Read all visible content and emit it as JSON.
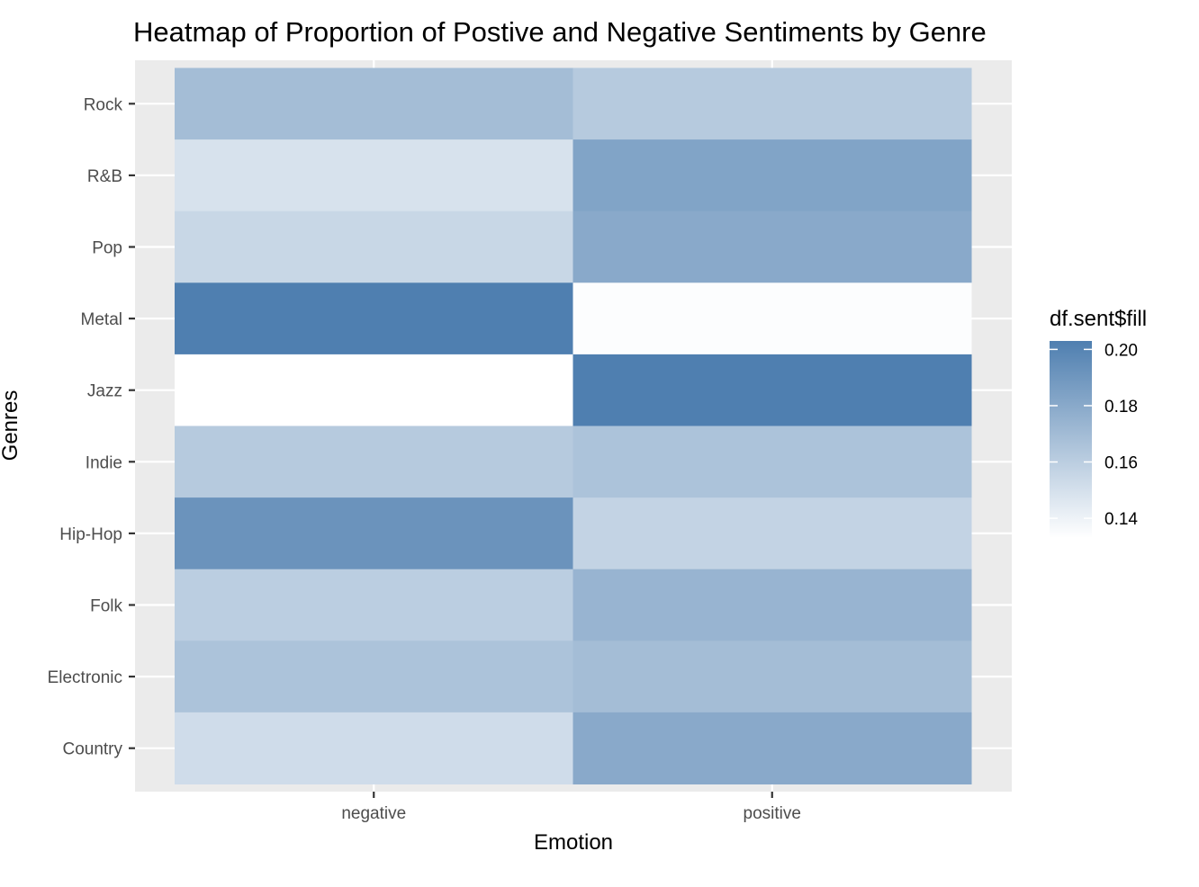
{
  "chart_data": {
    "type": "heatmap",
    "title": "Heatmap of Proportion of Postive and Negative Sentiments by Genre",
    "xlabel": "Emotion",
    "ylabel": "Genres",
    "x_categories": [
      "negative",
      "positive"
    ],
    "y_categories": [
      "Rock",
      "R&B",
      "Pop",
      "Metal",
      "Jazz",
      "Indie",
      "Hip-Hop",
      "Folk",
      "Electronic",
      "Country"
    ],
    "values": [
      [
        0.169,
        0.162
      ],
      [
        0.149,
        0.183
      ],
      [
        0.155,
        0.18
      ],
      [
        0.203,
        0.134
      ],
      [
        0.133,
        0.203
      ],
      [
        0.162,
        0.166
      ],
      [
        0.192,
        0.157
      ],
      [
        0.16,
        0.174
      ],
      [
        0.166,
        0.169
      ],
      [
        0.152,
        0.18
      ]
    ],
    "legend": {
      "title": "df.sent$fill",
      "ticks": [
        0.14,
        0.16,
        0.18,
        0.2
      ],
      "range": [
        0.133,
        0.203
      ],
      "low_color": "#ffffff",
      "high_color": "#4f7fb0",
      "placement": "right"
    },
    "panel_background": "#ebebeb",
    "grid": true
  }
}
